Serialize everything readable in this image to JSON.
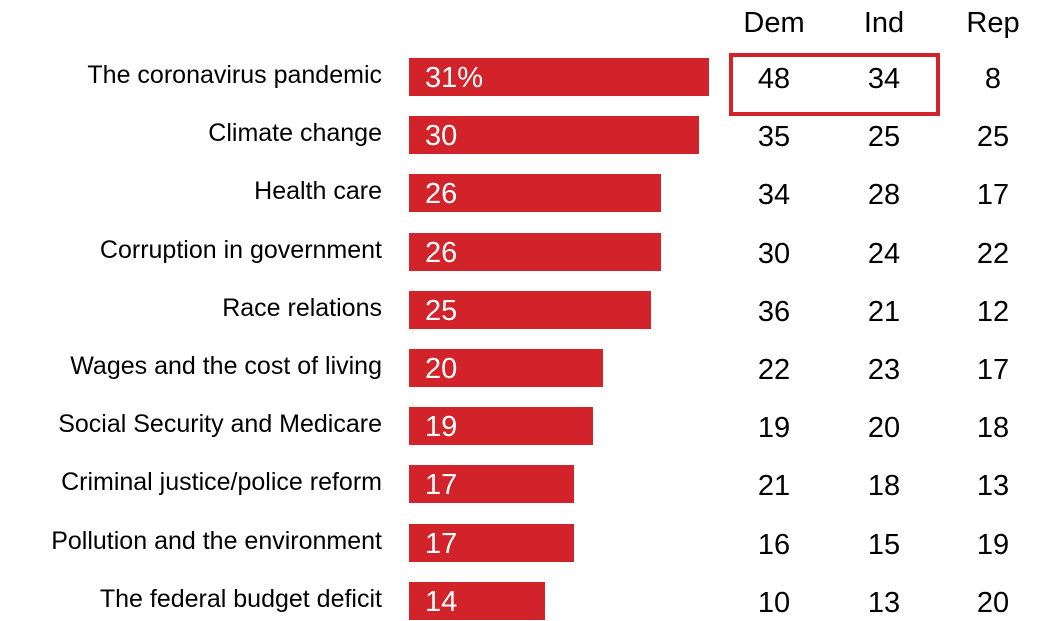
{
  "colors": {
    "bar": "#d2232a",
    "bar_text": "#ffffff",
    "highlight_border": "#d2232a",
    "text": "#000000"
  },
  "chart_data": {
    "type": "bar",
    "orientation": "horizontal",
    "categories": [
      "The coronavirus pandemic",
      "Climate change",
      "Health care",
      "Corruption in government",
      "Race relations",
      "Wages and the cost of living",
      "Social Security and Medicare",
      "Criminal justice/police reform",
      "Pollution and the environment",
      "The federal budget deficit"
    ],
    "values": [
      31,
      30,
      26,
      26,
      25,
      20,
      19,
      17,
      17,
      14
    ],
    "value_labels": [
      "31%",
      "30",
      "26",
      "26",
      "25",
      "20",
      "19",
      "17",
      "17",
      "14"
    ],
    "title": "",
    "xlabel": "",
    "ylabel": "",
    "grid": false,
    "table": {
      "columns": [
        "Dem",
        "Ind",
        "Rep"
      ],
      "rows": [
        [
          "48",
          "34",
          "8"
        ],
        [
          "35",
          "25",
          "25"
        ],
        [
          "34",
          "28",
          "17"
        ],
        [
          "30",
          "24",
          "22"
        ],
        [
          "36",
          "21",
          "12"
        ],
        [
          "22",
          "23",
          "17"
        ],
        [
          "19",
          "20",
          "18"
        ],
        [
          "21",
          "18",
          "13"
        ],
        [
          "16",
          "15",
          "19"
        ],
        [
          "10",
          "13",
          "20"
        ]
      ],
      "highlighted": [
        {
          "row": 0,
          "columns": [
            "Dem",
            "Ind"
          ]
        }
      ]
    }
  }
}
